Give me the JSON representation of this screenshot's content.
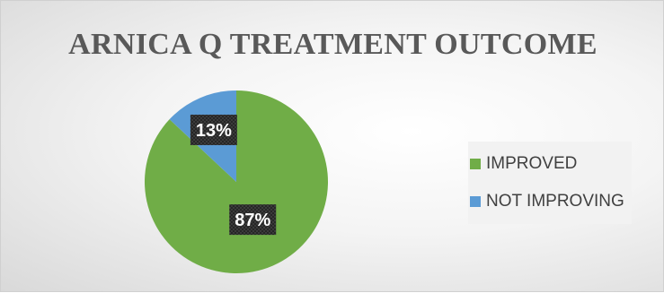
{
  "chart_data": {
    "type": "pie",
    "title": "ARNICA Q TREATMENT OUTCOME",
    "categories": [
      "IMPROVED",
      "NOT IMPROVING"
    ],
    "values": [
      87,
      13
    ],
    "data_labels": [
      "87%",
      "13%"
    ],
    "colors": [
      "#70ad47",
      "#5b9bd5"
    ],
    "legend_position": "right"
  }
}
